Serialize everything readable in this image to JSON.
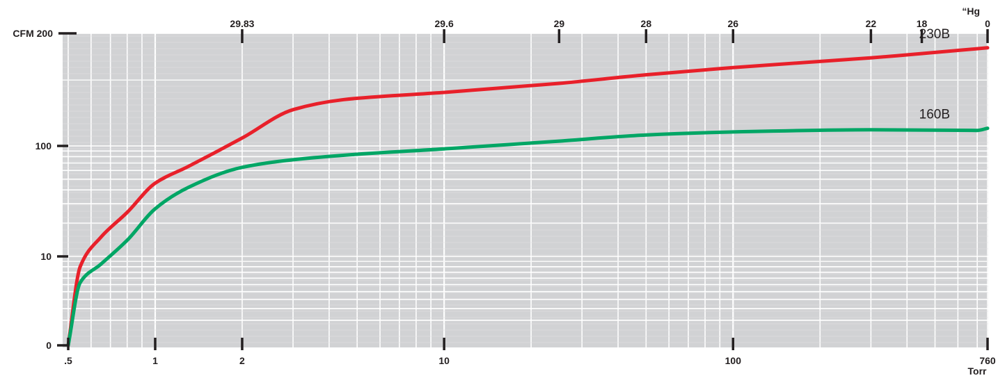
{
  "chart_data": {
    "type": "line",
    "title": "",
    "xlabel": "Torr",
    "ylabel": "CFM",
    "top_axis_label": "“Hg",
    "x_scale": "log",
    "y_scale": "log",
    "xlim": [
      0.5,
      760
    ],
    "grid": true,
    "legend": "inline labels at right end of curves",
    "colors": {
      "plot_bg": "#d1d2d4",
      "grid": "#ffffff",
      "ink": "#231f20"
    },
    "x_ticks": [
      {
        "value": 0.5,
        "label": ".5"
      },
      {
        "value": 1,
        "label": "1"
      },
      {
        "value": 2,
        "label": "2"
      },
      {
        "value": 10,
        "label": "10"
      },
      {
        "value": 100,
        "label": "100"
      },
      {
        "value": 760,
        "label": "760"
      }
    ],
    "top_ticks": [
      {
        "torr": 2,
        "label": "29.83"
      },
      {
        "torr": 10,
        "label": "29.6"
      },
      {
        "torr": 25,
        "label": "29"
      },
      {
        "torr": 50,
        "label": "28"
      },
      {
        "torr": 100,
        "label": "26"
      },
      {
        "torr": 300,
        "label": "22"
      },
      {
        "torr": 450,
        "label": "18"
      },
      {
        "torr": 760,
        "label": "0"
      }
    ],
    "y_ticks": [
      {
        "value": 0,
        "label": "0"
      },
      {
        "value": 10,
        "label": "10"
      },
      {
        "value": 100,
        "label": "100"
      },
      {
        "value": 200,
        "label": "CFM 200"
      }
    ],
    "series": [
      {
        "name": "230B",
        "color": "#e8202a",
        "x": [
          0.5,
          0.55,
          0.65,
          0.8,
          1,
          1.3,
          2,
          3,
          4.5,
          10,
          25,
          50,
          100,
          300,
          760
        ],
        "y": [
          0,
          8,
          15,
          25,
          46,
          65,
          105,
          125,
          133,
          139,
          147,
          155,
          162,
          172,
          183
        ]
      },
      {
        "name": "160B",
        "color": "#00a665",
        "x": [
          0.5,
          0.55,
          0.65,
          0.8,
          1,
          1.3,
          2,
          3,
          5,
          10,
          25,
          50,
          100,
          300,
          700,
          760
        ],
        "y": [
          0,
          5.3,
          8.5,
          14,
          27,
          42,
          64,
          75,
          84,
          94,
          103,
          107,
          109,
          110.5,
          110,
          111.5
        ]
      }
    ]
  }
}
